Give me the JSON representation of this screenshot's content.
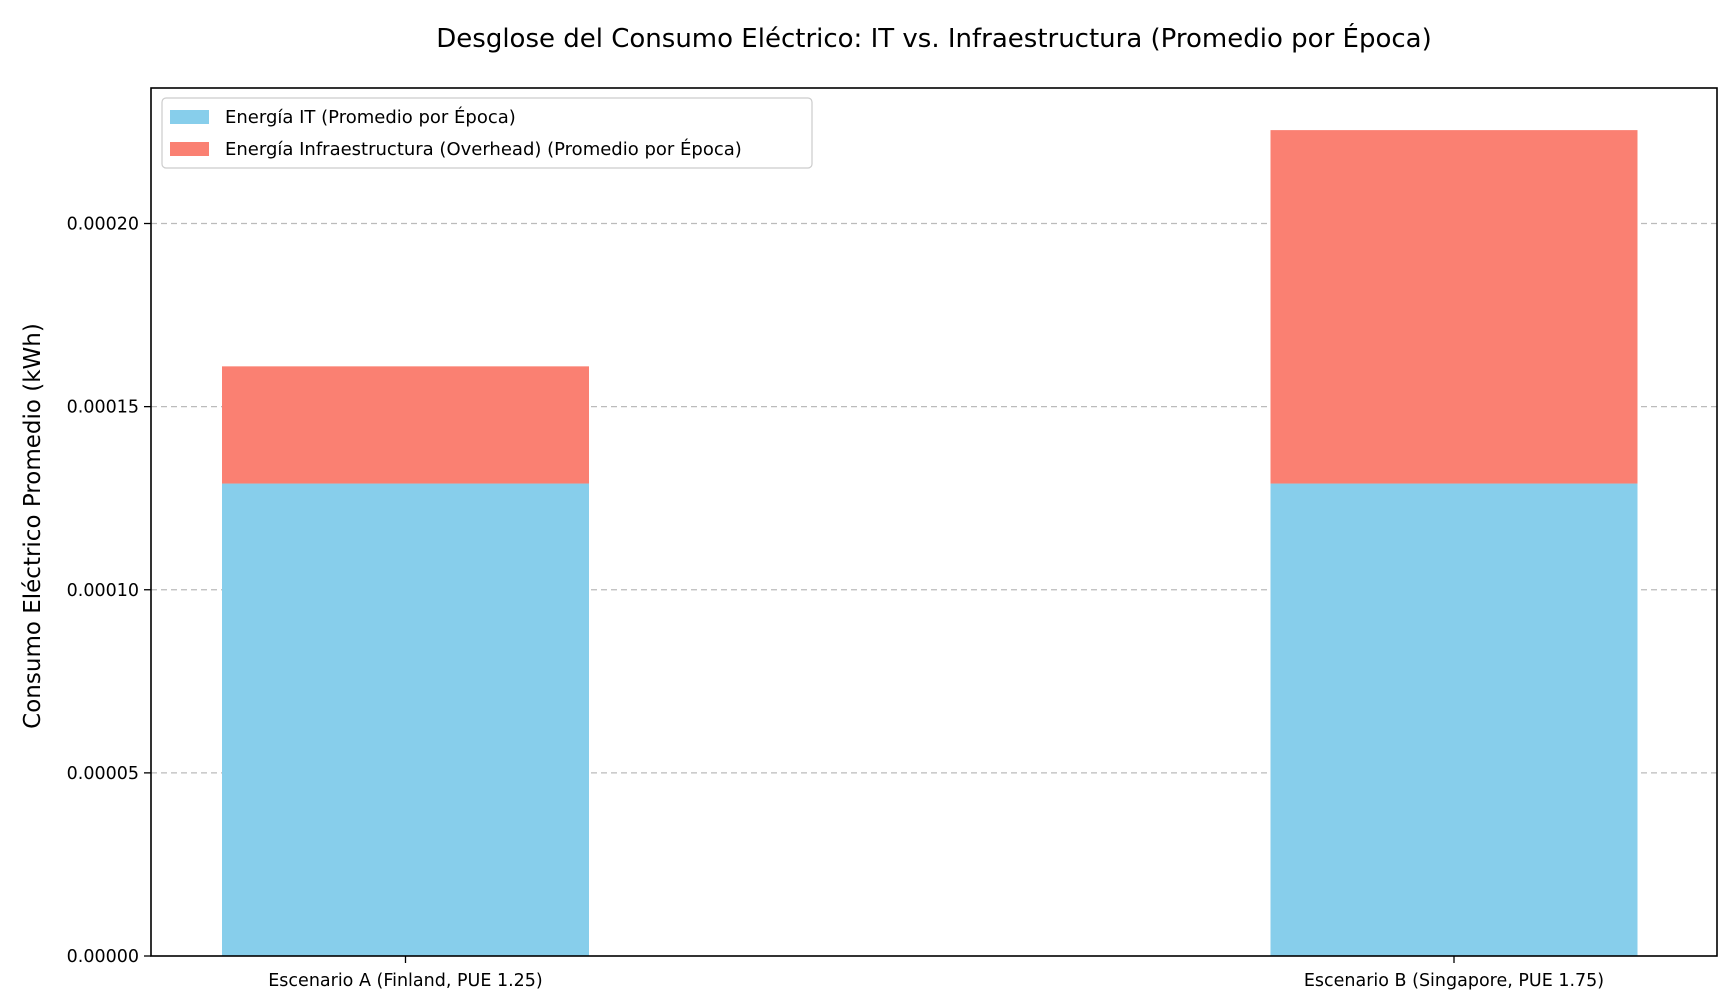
{
  "chart_data": {
    "type": "bar",
    "stacked": true,
    "title": "Desglose del Consumo Eléctrico: IT vs. Infraestructura (Promedio por Época)",
    "xlabel": "",
    "ylabel": "Consumo Eléctrico Promedio (kWh)",
    "categories": [
      "Escenario A (Finland, PUE 1.25)",
      "Escenario B (Singapore, PUE 1.75)"
    ],
    "series": [
      {
        "name": "Energía IT (Promedio por Época)",
        "values": [
          0.000129,
          0.000129
        ],
        "color": "#87CEEB"
      },
      {
        "name": "Energía Infraestructura (Overhead) (Promedio por Época)",
        "values": [
          3.2e-05,
          9.65e-05
        ],
        "color": "#FA8072"
      }
    ],
    "ylim": [
      0,
      0.000237
    ],
    "yticks": [
      0,
      5e-05,
      0.0001,
      0.00015,
      0.0002
    ],
    "ytick_labels": [
      "0.00000",
      "0.00005",
      "0.00010",
      "0.00015",
      "0.00020"
    ],
    "grid": {
      "y": true,
      "x": false,
      "style": "dashed"
    },
    "legend_position": "top-left"
  }
}
